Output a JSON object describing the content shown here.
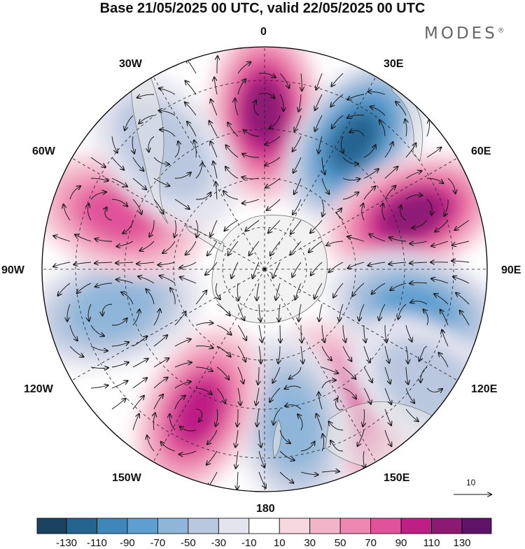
{
  "title": "Base 21/05/2025 00 UTC, valid 22/05/2025 00 UTC",
  "brand": {
    "text": "MODES",
    "mark": "®"
  },
  "longitude_labels": [
    "0",
    "30E",
    "60E",
    "90E",
    "120E",
    "150E",
    "180",
    "150W",
    "120W",
    "90W",
    "60W",
    "30W"
  ],
  "colorbar": {
    "labels": [
      "-130",
      "-110",
      "-90",
      "-70",
      "-50",
      "-30",
      "-10",
      "10",
      "30",
      "50",
      "70",
      "90",
      "110",
      "130"
    ],
    "colors": [
      "#1b4360",
      "#25648f",
      "#3f86b9",
      "#5f9fcf",
      "#8fb6d9",
      "#bac8df",
      "#e4e4ef",
      "#ffffff",
      "#f7d7e0",
      "#f3b3c8",
      "#ee88b0",
      "#e0529a",
      "#bd1f85",
      "#8b1a75",
      "#5e1368"
    ]
  },
  "vector_reference": {
    "value": "10"
  },
  "map": {
    "projection": "south-polar-stereographic",
    "land_color": "#ececec",
    "anomaly_centers": [
      {
        "sign": "positive",
        "lon": 0,
        "value": 110
      },
      {
        "sign": "negative",
        "lon": 35,
        "value": -130
      },
      {
        "sign": "positive",
        "lon": 70,
        "value": 110
      },
      {
        "sign": "negative",
        "lon": 105,
        "value": -90
      },
      {
        "sign": "positive",
        "lon": 150,
        "value": 70
      },
      {
        "sign": "negative",
        "lon": 170,
        "value": -70
      },
      {
        "sign": "positive",
        "lon": 205,
        "value": 90
      },
      {
        "sign": "negative",
        "lon": 255,
        "value": -70
      },
      {
        "sign": "positive",
        "lon": 290,
        "value": 70
      },
      {
        "sign": "negative",
        "lon": 320,
        "value": -50
      },
      {
        "sign": "negative",
        "lon": 125,
        "value": -50
      }
    ]
  }
}
